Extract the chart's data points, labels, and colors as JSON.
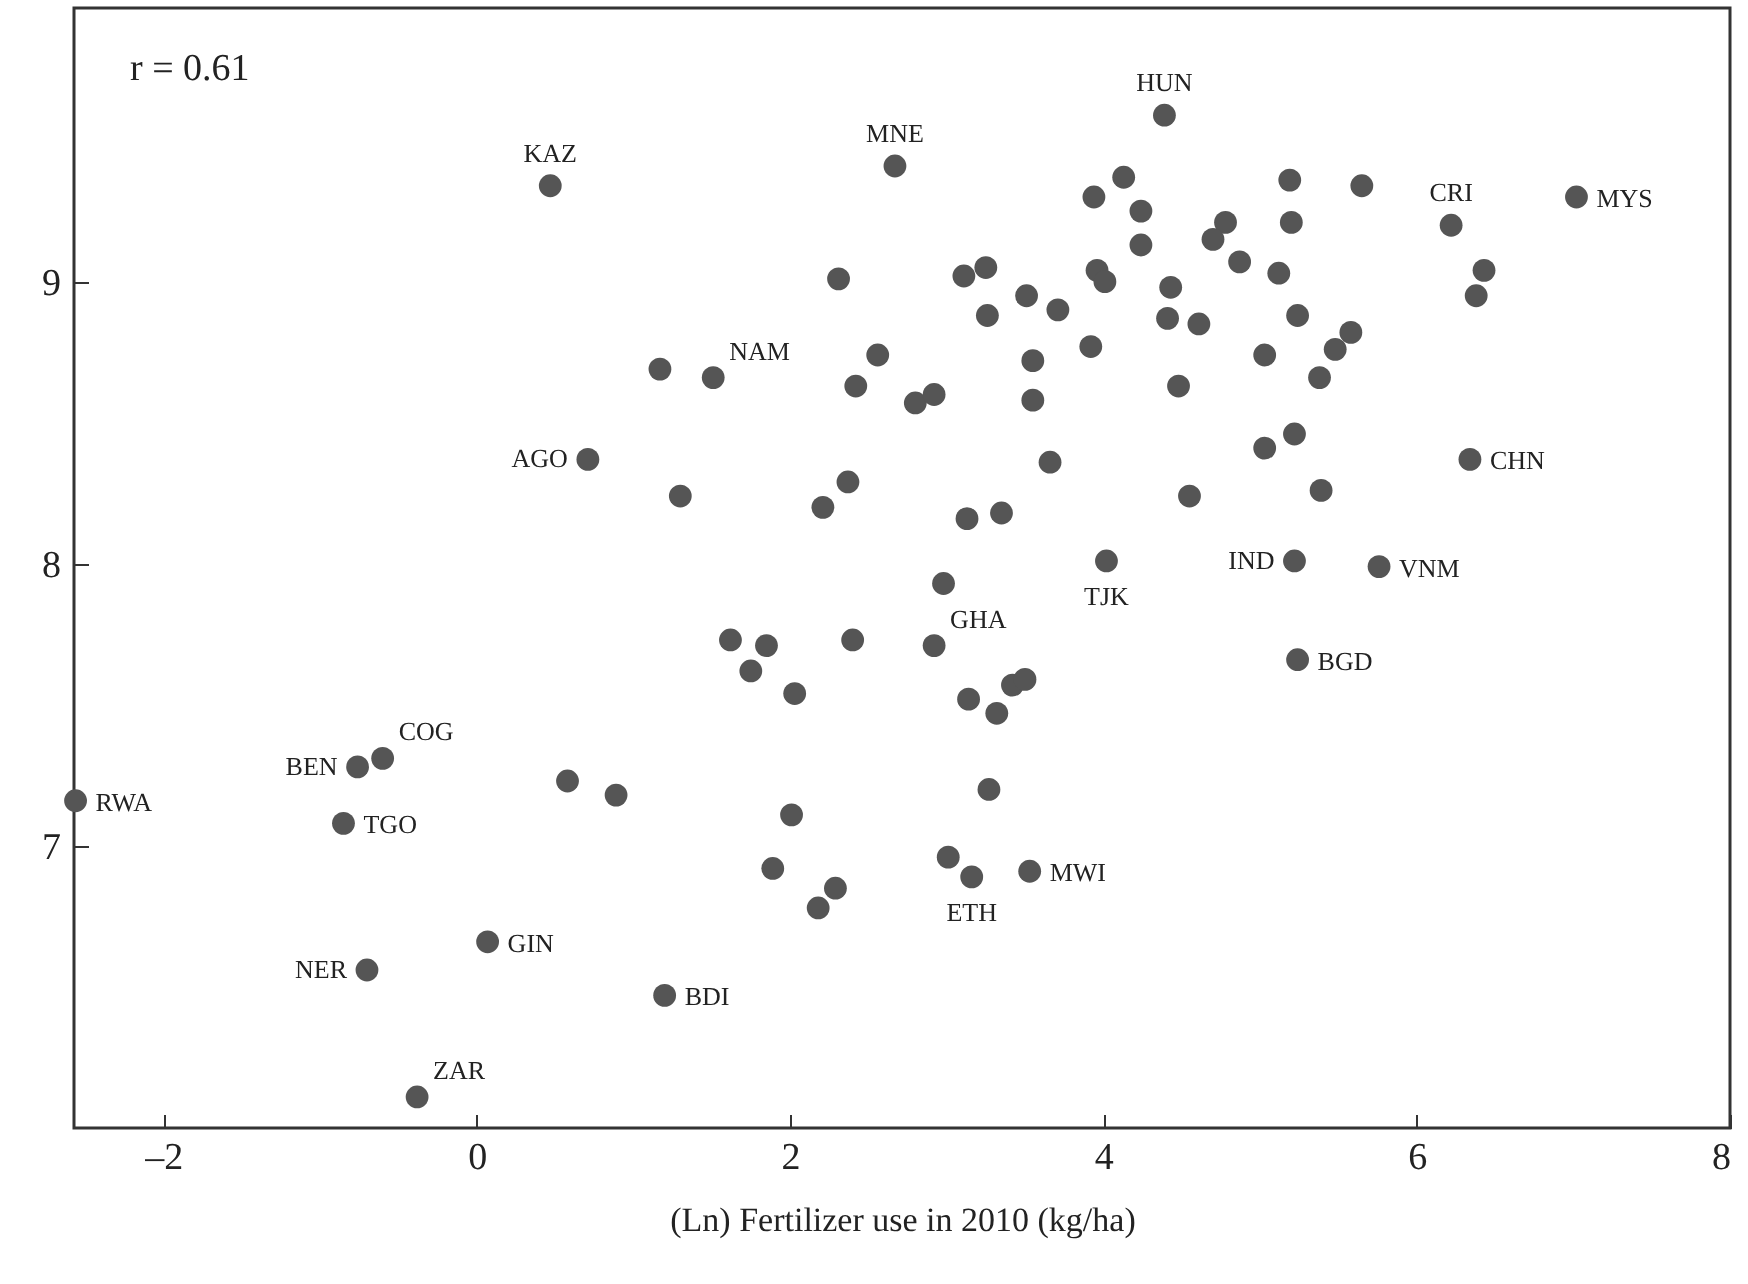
{
  "chart_data": {
    "type": "scatter",
    "xlabel": "(Ln) Fertilizer use in 2010 (kg/ha)",
    "xlim": [
      -2.57,
      8
    ],
    "ylim": [
      6,
      9.97
    ],
    "xticks": [
      {
        "value": -2,
        "label": "–2"
      },
      0,
      2,
      4,
      6,
      8
    ],
    "yticks": [
      7,
      8,
      9
    ],
    "grid": false,
    "marker": "circle",
    "series": [
      {
        "color": "#555555",
        "x": [
          0.47,
          2.67,
          4.39,
          7.02,
          6.22,
          1.51,
          0.71,
          6.34,
          5.22,
          5.76,
          4.02,
          2.92,
          5.24,
          3.53,
          3.16,
          -2.56,
          -0.76,
          -0.6,
          -0.85,
          0.07,
          -0.7,
          1.2,
          -0.38,
          1.17,
          1.3,
          2.31,
          2.56,
          2.42,
          2.37,
          2.21,
          3.94,
          4.13,
          4.24,
          4.24,
          3.11,
          3.25,
          3.26,
          3.51,
          3.71,
          3.96,
          4.01,
          4.43,
          4.41,
          4.61,
          4.78,
          4.7,
          4.87,
          5.12,
          5.19,
          5.2,
          5.24,
          5.65,
          6.43,
          6.38,
          5.58,
          5.48,
          5.38,
          5.03,
          4.48,
          3.92,
          3.55,
          3.55,
          2.8,
          2.92,
          5.03,
          5.22,
          3.66,
          4.55,
          5.39,
          3.13,
          3.35,
          2.98,
          1.62,
          1.85,
          1.75,
          2.03,
          2.4,
          0.58,
          0.89,
          2.01,
          1.89,
          2.29,
          2.18,
          3.14,
          3.32,
          3.42,
          3.5,
          3.27,
          3.01
        ],
        "values": [
          9.34,
          9.41,
          9.59,
          9.3,
          9.2,
          8.66,
          8.37,
          8.37,
          8.01,
          7.99,
          8.01,
          7.71,
          7.66,
          6.91,
          6.89,
          7.16,
          7.28,
          7.31,
          7.08,
          6.66,
          6.56,
          6.47,
          6.11,
          8.69,
          8.24,
          9.01,
          8.74,
          8.63,
          8.29,
          8.2,
          9.3,
          9.37,
          9.25,
          9.13,
          9.02,
          9.05,
          8.88,
          8.95,
          8.9,
          9.04,
          9,
          8.98,
          8.87,
          8.85,
          9.21,
          9.15,
          9.07,
          9.03,
          9.36,
          9.21,
          8.88,
          9.34,
          9.04,
          8.95,
          8.82,
          8.76,
          8.66,
          8.74,
          8.63,
          8.77,
          8.72,
          8.58,
          8.57,
          8.6,
          8.41,
          8.46,
          8.36,
          8.24,
          8.26,
          8.16,
          8.18,
          7.93,
          7.73,
          7.71,
          7.62,
          7.54,
          7.73,
          7.23,
          7.18,
          7.11,
          6.92,
          6.85,
          6.78,
          7.52,
          7.47,
          7.57,
          7.59,
          7.2,
          6.96
        ]
      }
    ],
    "annotations": [
      "r = 0.61",
      {
        "text": "KAZ",
        "x": 0.47,
        "y": 9.34
      },
      {
        "text": "MNE",
        "x": 2.67,
        "y": 9.41
      },
      {
        "text": "HUN",
        "x": 4.39,
        "y": 9.59
      },
      {
        "text": "MYS",
        "x": 7.02,
        "y": 9.3
      },
      {
        "text": "CRI",
        "x": 6.22,
        "y": 9.2
      },
      {
        "text": "NAM",
        "x": 1.51,
        "y": 8.66
      },
      {
        "text": "AGO",
        "x": 0.71,
        "y": 8.37
      },
      {
        "text": "CHN",
        "x": 6.34,
        "y": 8.37
      },
      {
        "text": "IND",
        "x": 5.22,
        "y": 8.01
      },
      {
        "text": "VNM",
        "x": 5.76,
        "y": 7.99
      },
      {
        "text": "TJK",
        "x": 4.02,
        "y": 8.01
      },
      {
        "text": "GHA",
        "x": 2.92,
        "y": 7.71
      },
      {
        "text": "BGD",
        "x": 5.24,
        "y": 7.66
      },
      {
        "text": "MWI",
        "x": 3.53,
        "y": 6.91
      },
      {
        "text": "ETH",
        "x": 3.16,
        "y": 6.89
      },
      {
        "text": "RWA",
        "x": -2.56,
        "y": 7.16
      },
      {
        "text": "BEN",
        "x": -0.76,
        "y": 7.28
      },
      {
        "text": "COG",
        "x": -0.6,
        "y": 7.31
      },
      {
        "text": "TGO",
        "x": -0.85,
        "y": 7.08
      },
      {
        "text": "GIN",
        "x": 0.07,
        "y": 6.66
      },
      {
        "text": "NER",
        "x": -0.7,
        "y": 6.56
      },
      {
        "text": "BDI",
        "x": 1.2,
        "y": 6.47
      },
      {
        "text": "ZAR",
        "x": -0.38,
        "y": 6.11
      }
    ]
  }
}
